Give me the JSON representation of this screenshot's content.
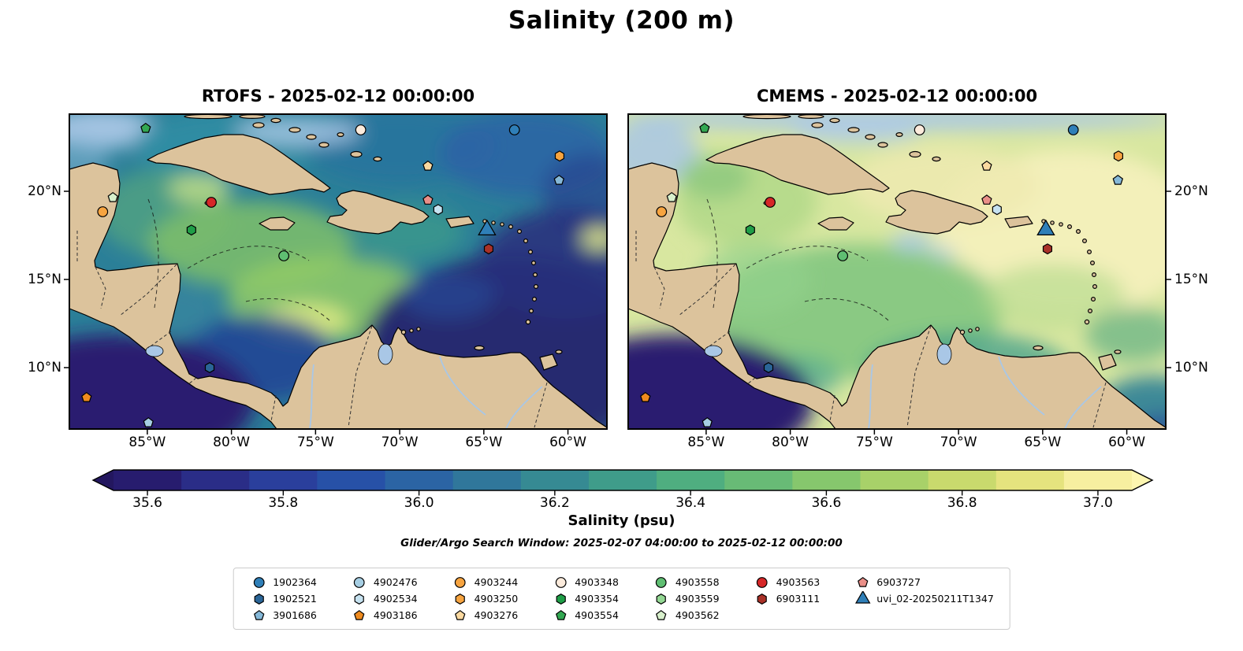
{
  "figure": {
    "title": "Salinity (200 m)"
  },
  "chart_data": {
    "type": "heatmap",
    "subtype": "geographic-salinity-model-comparison",
    "title": "Salinity (200 m)",
    "panels": [
      {
        "model": "RTOFS",
        "title": "RTOFS - 2025-02-12 00:00:00",
        "timestamp": "2025-02-12 00:00:00",
        "base_color": "#2b7f98",
        "description": "Cool teal field with green mesoscale filaments in the central Caribbean, dark low-salinity pool in the SE Atlantic sector and Pacific corner"
      },
      {
        "model": "CMEMS",
        "title": "CMEMS - 2025-02-12 00:00:00",
        "timestamp": "2025-02-12 00:00:00",
        "base_color": "#d8e7a0",
        "description": "Warm yellow-green field, pale-yellow high-salinity pool east of the Bahamas, greener central and southern Caribbean, dark Pacific corner"
      }
    ],
    "x_axis": {
      "tick_labels": [
        "85°W",
        "80°W",
        "75°W",
        "70°W",
        "65°W",
        "60°W"
      ],
      "lon_range_west_deg": [
        89.6,
        57.6
      ]
    },
    "y_axis": {
      "tick_labels": [
        "20°N",
        "15°N",
        "10°N"
      ],
      "lat_range_north_deg": [
        6.5,
        24.4
      ]
    },
    "colorbar": {
      "label": "Salinity (psu)",
      "tick_labels": [
        "35.6",
        "35.8",
        "36.0",
        "36.2",
        "36.4",
        "36.6",
        "36.8",
        "37.0"
      ],
      "tick_values": [
        35.6,
        35.8,
        36.0,
        36.2,
        36.4,
        36.6,
        36.8,
        37.0
      ],
      "value_range": [
        35.55,
        37.05
      ],
      "extend_arrows": "both",
      "colors": [
        "#271c6e",
        "#2a2d87",
        "#2a3f9c",
        "#2751a7",
        "#2b64a4",
        "#30779b",
        "#368a93",
        "#3f9c8a",
        "#4fae80",
        "#68bb76",
        "#86c76d",
        "#a8d169",
        "#c9da6d",
        "#e5e37e",
        "#f7efa0"
      ],
      "under_color": "#23175f",
      "over_color": "#fdf6b0"
    },
    "search_window": "Glider/Argo Search Window: 2025-02-07 04:00:00 to 2025-02-12 00:00:00",
    "legend_entries": [
      {
        "label": "1902364",
        "shape": "circle",
        "color": "#2f7fb8"
      },
      {
        "label": "1902521",
        "shape": "hexagon",
        "color": "#2a6597"
      },
      {
        "label": "3901686",
        "shape": "pentagon",
        "color": "#85b8d8"
      },
      {
        "label": "4902476",
        "shape": "circle",
        "color": "#a6cee3"
      },
      {
        "label": "4902534",
        "shape": "hexagon",
        "color": "#c6e2f0"
      },
      {
        "label": "4903186",
        "shape": "pentagon",
        "color": "#ef8b1f"
      },
      {
        "label": "4903244",
        "shape": "circle",
        "color": "#f7a440"
      },
      {
        "label": "4903250",
        "shape": "hexagon",
        "color": "#f7a440"
      },
      {
        "label": "4903276",
        "shape": "pentagon",
        "color": "#fbd9a0"
      },
      {
        "label": "4903348",
        "shape": "circle",
        "color": "#fcebdc"
      },
      {
        "label": "4903354",
        "shape": "hexagon",
        "color": "#1f9e47"
      },
      {
        "label": "4903554",
        "shape": "pentagon",
        "color": "#33a852"
      },
      {
        "label": "4903558",
        "shape": "circle",
        "color": "#5fbe72"
      },
      {
        "label": "4903559",
        "shape": "hexagon",
        "color": "#93d793"
      },
      {
        "label": "4903562",
        "shape": "pentagon",
        "color": "#d8f0cc"
      },
      {
        "label": "4903563",
        "shape": "circle",
        "color": "#d62728"
      },
      {
        "label": "6903111",
        "shape": "hexagon",
        "color": "#a93128"
      },
      {
        "label": "6903727",
        "shape": "pentagon",
        "color": "#ea8f88"
      },
      {
        "label": "uvi_02-20250211T1347",
        "shape": "triangle",
        "color": "#2f7fb8",
        "size": "large"
      }
    ],
    "legend_columns": [
      [
        0,
        1,
        2
      ],
      [
        3,
        4,
        5
      ],
      [
        6,
        7,
        8
      ],
      [
        9,
        10,
        11
      ],
      [
        12,
        13,
        14
      ],
      [
        15,
        16
      ],
      [
        17,
        18
      ]
    ],
    "map_markers": [
      {
        "shape": "pentagon",
        "color": "#33a852",
        "fx": 0.142,
        "fy": 0.045
      },
      {
        "shape": "circle",
        "color": "#fcebdc",
        "fx": 0.542,
        "fy": 0.05
      },
      {
        "shape": "circle",
        "color": "#2f7fb8",
        "fx": 0.828,
        "fy": 0.05
      },
      {
        "shape": "hexagon",
        "color": "#f7a440",
        "fx": 0.912,
        "fy": 0.133
      },
      {
        "shape": "pentagon",
        "color": "#fbd9a0",
        "fx": 0.667,
        "fy": 0.165
      },
      {
        "shape": "pentagon",
        "color": "#85b8d8",
        "fx": 0.911,
        "fy": 0.21
      },
      {
        "shape": "pentagon",
        "color": "#d8f0cc",
        "fx": 0.081,
        "fy": 0.265
      },
      {
        "shape": "circle",
        "color": "#f7a440",
        "fx": 0.062,
        "fy": 0.31
      },
      {
        "shape": "circle",
        "color": "#d62728",
        "fx": 0.264,
        "fy": 0.28
      },
      {
        "shape": "pentagon",
        "color": "#ea8f88",
        "fx": 0.667,
        "fy": 0.273
      },
      {
        "shape": "hexagon",
        "color": "#c6e2f0",
        "fx": 0.686,
        "fy": 0.303
      },
      {
        "shape": "hexagon",
        "color": "#1f9e47",
        "fx": 0.227,
        "fy": 0.368
      },
      {
        "shape": "triangle",
        "color": "#2f7fb8",
        "fx": 0.777,
        "fy": 0.368,
        "size": "large"
      },
      {
        "shape": "hexagon",
        "color": "#a93128",
        "fx": 0.78,
        "fy": 0.428
      },
      {
        "shape": "circle",
        "color": "#5fbe72",
        "fx": 0.399,
        "fy": 0.45
      },
      {
        "shape": "hexagon",
        "color": "#2a6597",
        "fx": 0.261,
        "fy": 0.805
      },
      {
        "shape": "pentagon",
        "color": "#ef8b1f",
        "fx": 0.032,
        "fy": 0.9
      },
      {
        "shape": "pentagon",
        "color": "#a6cee3",
        "fx": 0.147,
        "fy": 0.98
      }
    ]
  }
}
